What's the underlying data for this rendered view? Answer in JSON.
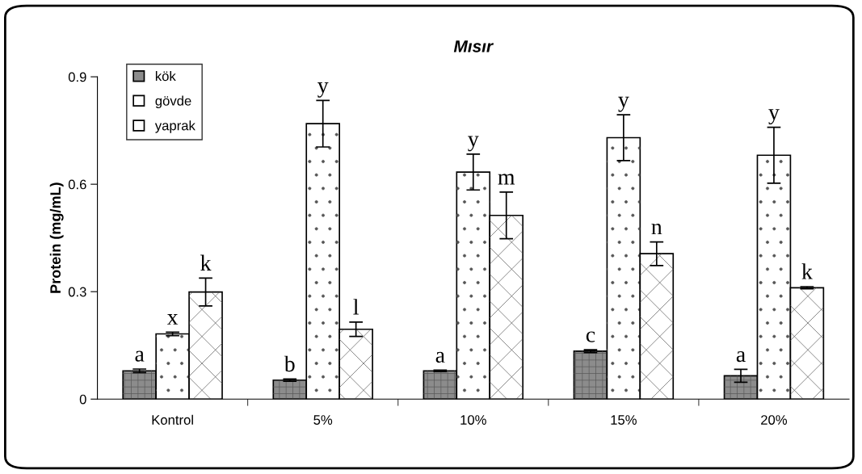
{
  "chart_data": {
    "type": "bar",
    "title": "Mısır",
    "ylabel": "Protein (mg/mL)",
    "categories": [
      "Kontrol",
      "5%",
      "10%",
      "15%",
      "20%"
    ],
    "series": [
      {
        "name": "kök",
        "color": "#8c8c8c",
        "values": [
          0.079,
          0.053,
          0.079,
          0.134,
          0.065
        ],
        "errors": [
          0.005,
          0.003,
          0.002,
          0.004,
          0.018
        ],
        "value_labels": [
          "a",
          "b",
          "a",
          "c",
          "a"
        ]
      },
      {
        "name": "gövde",
        "color": "#ffffff",
        "values": [
          0.182,
          0.769,
          0.634,
          0.73,
          0.681
        ],
        "errors": [
          0.005,
          0.065,
          0.05,
          0.064,
          0.078
        ],
        "value_labels": [
          "x",
          "y",
          "y",
          "y",
          "y"
        ]
      },
      {
        "name": "yaprak",
        "color": "#ffffff",
        "values": [
          0.299,
          0.195,
          0.513,
          0.406,
          0.311
        ],
        "errors": [
          0.039,
          0.02,
          0.065,
          0.033,
          0.003
        ],
        "value_labels": [
          "k",
          "l",
          "m",
          "n",
          "k"
        ]
      }
    ],
    "ylim": [
      0,
      0.9
    ],
    "yticks": [
      0,
      0.3,
      0.6,
      0.9
    ],
    "grid": false,
    "legend": "top left"
  }
}
